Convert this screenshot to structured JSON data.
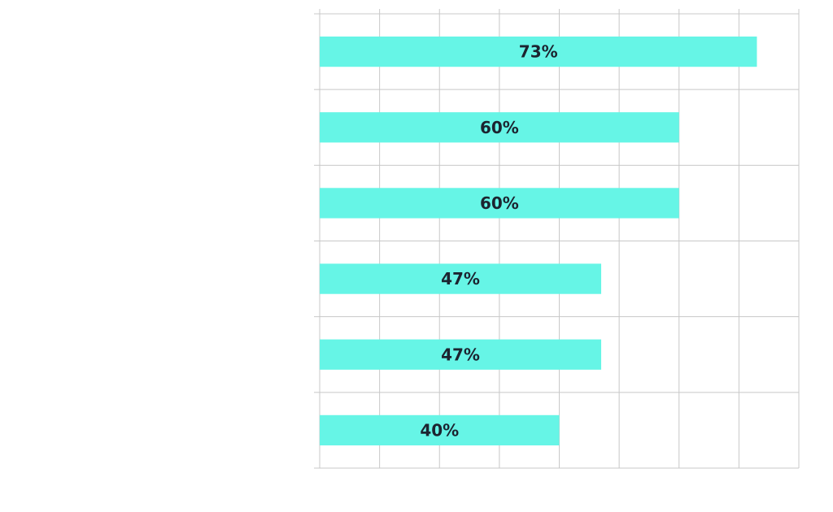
{
  "chart_data": {
    "type": "bar",
    "orientation": "horizontal",
    "categories": [
      "",
      "",
      "",
      "",
      "",
      ""
    ],
    "values": [
      73,
      60,
      60,
      47,
      47,
      40
    ],
    "data_labels": [
      "73%",
      "60%",
      "60%",
      "47%",
      "47%",
      "40%"
    ],
    "xlim": [
      0,
      80
    ],
    "x_grid_step": 10,
    "grid": true,
    "legend": "none",
    "title": "",
    "xlabel": "",
    "ylabel": ""
  },
  "colors": {
    "bar": "#66F5E6",
    "label": "#1C2430",
    "grid": "#C8C8C8",
    "axis": "#C8C8C8",
    "background": "#FFFFFF"
  }
}
